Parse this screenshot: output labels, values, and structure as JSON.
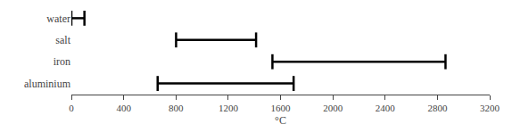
{
  "chart_data": {
    "type": "range",
    "categories": [
      "water",
      "salt",
      "iron",
      "aluminium"
    ],
    "values": [
      [
        0,
        100
      ],
      [
        801,
        1413
      ],
      [
        1538,
        2862
      ],
      [
        660,
        1700
      ]
    ],
    "color": "#000000",
    "xlabel": "°C",
    "xlim": [
      0,
      3200
    ],
    "xticks": [
      0,
      400,
      800,
      1200,
      1600,
      2000,
      2400,
      2800,
      3200
    ],
    "grid": false
  }
}
